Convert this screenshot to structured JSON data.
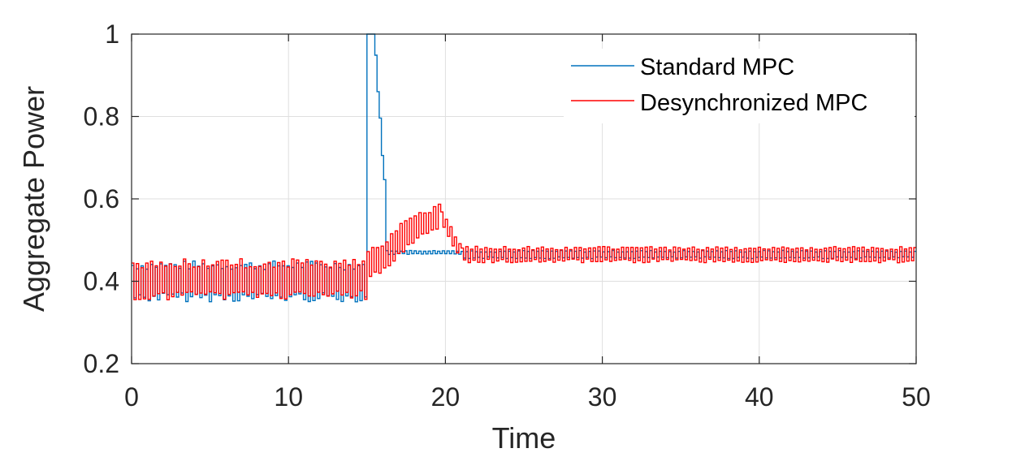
{
  "chart_data": {
    "type": "line",
    "title": "",
    "xlabel": "Time",
    "ylabel": "Aggregate Power",
    "xlim": [
      0,
      50
    ],
    "ylim": [
      0.2,
      1
    ],
    "xticks": [
      0,
      10,
      20,
      30,
      40,
      50
    ],
    "xtick_labels": [
      "0",
      "10",
      "20",
      "30",
      "40",
      "50"
    ],
    "yticks": [
      0.2,
      0.4,
      0.6,
      0.8,
      1
    ],
    "ytick_labels": [
      "0.2",
      "0.4",
      "0.6",
      "0.8",
      "1"
    ],
    "grid": true,
    "legend_position": "top-right",
    "colors": {
      "standard": "#0072BD",
      "desync": "#FF0000",
      "axes": "#262626",
      "grid": "#DFDFDF"
    },
    "series": [
      {
        "name": "Standard MPC",
        "color": "#0072BD",
        "pattern": "oscillating",
        "segments": [
          {
            "x": [
              0,
              15
            ],
            "center": [
              0.4,
              0.4
            ],
            "amplitude": [
              0.05,
              0.05
            ],
            "period": 0.3
          },
          {
            "x": [
              15,
              15.5
            ],
            "center": [
              1.0,
              1.0
            ],
            "amplitude": [
              0,
              0
            ],
            "period": 0.3
          },
          {
            "x": [
              15.5,
              16.2
            ],
            "center": [
              0.98,
              0.6
            ],
            "amplitude": [
              0.01,
              0.01
            ],
            "period": 0.3
          },
          {
            "x": [
              16.2,
              21
            ],
            "center": [
              0.47,
              0.47
            ],
            "amplitude": [
              0.005,
              0.005
            ],
            "period": 0.3
          },
          {
            "x": [
              21,
              50
            ],
            "center": [
              0.465,
              0.465
            ],
            "amplitude": [
              0.01,
              0.01
            ],
            "period": 0.3
          }
        ]
      },
      {
        "name": "Desynchronized MPC",
        "color": "#FF0000",
        "pattern": "oscillating",
        "segments": [
          {
            "x": [
              0,
              15
            ],
            "center": [
              0.405,
              0.405
            ],
            "amplitude": [
              0.05,
              0.05
            ],
            "period": 0.3
          },
          {
            "x": [
              15,
              18
            ],
            "center": [
              0.43,
              0.53
            ],
            "amplitude": [
              0.04,
              0.04
            ],
            "period": 0.3
          },
          {
            "x": [
              18,
              19.7
            ],
            "center": [
              0.53,
              0.56
            ],
            "amplitude": [
              0.03,
              0.03
            ],
            "period": 0.3
          },
          {
            "x": [
              19.7,
              21
            ],
            "center": [
              0.56,
              0.47
            ],
            "amplitude": [
              0.02,
              0.02
            ],
            "period": 0.3
          },
          {
            "x": [
              21,
              50
            ],
            "center": [
              0.465,
              0.465
            ],
            "amplitude": [
              0.02,
              0.02
            ],
            "period": 0.3
          }
        ]
      }
    ]
  }
}
